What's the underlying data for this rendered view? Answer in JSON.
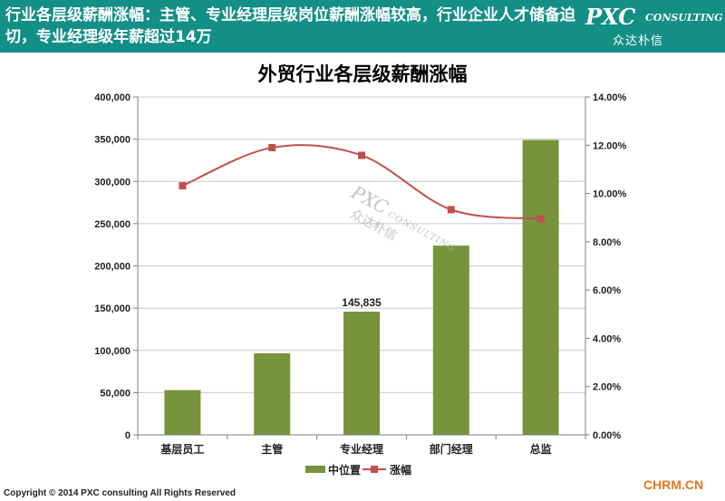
{
  "header": {
    "text": "行业各层级薪酬涨幅：主管、专业经理层级岗位薪酬涨幅较高，行业企业人才储备迫切，专业经理级年薪超过14万",
    "logo_main": "PXC",
    "logo_sub": "CONSULTING",
    "logo_cn": "众达朴信"
  },
  "watermark": {
    "main": "PXC",
    "sub": "CONSULTING",
    "cn": "众达朴信"
  },
  "footer": {
    "copyright": "Copyright © 2014  PXC consulting All Rights Reserved",
    "site": "CHRM.CN"
  },
  "colors": {
    "header_bg": "#138f86",
    "bar": "#77933c",
    "line": "#c0504d"
  },
  "chart_data": {
    "type": "bar",
    "title": "外贸行业各层级薪酬涨幅",
    "categories": [
      "基层员工",
      "主管",
      "专业经理",
      "部门经理",
      "总监"
    ],
    "series": [
      {
        "name": "中位置",
        "type": "bar",
        "axis": "left",
        "values": [
          53000,
          96500,
          145835,
          224000,
          349000
        ],
        "data_labels": [
          null,
          null,
          "145,835",
          null,
          null
        ]
      },
      {
        "name": "涨幅",
        "type": "line",
        "axis": "right",
        "smooth": true,
        "values": [
          0.1032,
          0.119,
          0.1158,
          0.0933,
          0.0895
        ]
      }
    ],
    "y_left": {
      "min": 0,
      "max": 400000,
      "step": 50000,
      "ticks": [
        "0",
        "50,000",
        "100,000",
        "150,000",
        "200,000",
        "250,000",
        "300,000",
        "350,000",
        "400,000"
      ]
    },
    "y_right": {
      "min": 0,
      "max": 0.14,
      "step": 0.02,
      "ticks": [
        "0.00%",
        "2.00%",
        "4.00%",
        "6.00%",
        "8.00%",
        "10.00%",
        "12.00%",
        "14.00%"
      ]
    },
    "grid": true,
    "legend_position": "bottom"
  }
}
